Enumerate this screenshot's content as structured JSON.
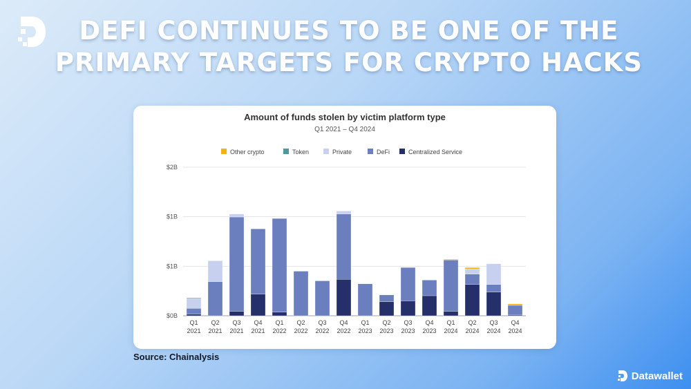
{
  "headline": {
    "line1": "DEFI CONTINUES TO BE ONE OF THE",
    "line2": "PRIMARY TARGETS FOR CRYPTO HACKS"
  },
  "source": "Source: Chainalysis",
  "brand": {
    "name": "Datawallet",
    "icon": "datawallet-logo-icon"
  },
  "colors": {
    "other": "#f2b316",
    "token": "#4d9a9e",
    "private": "#c7d0ee",
    "defi": "#6b7fbf",
    "centralized": "#25306b"
  },
  "chart_data": {
    "type": "bar",
    "stacked": true,
    "title": "Amount of funds stolen by victim platform type",
    "subtitle": "Q1 2021 – Q4 2024",
    "y_ticks": [
      "$0B",
      "$1B",
      "$1B",
      "$2B"
    ],
    "ylim": [
      0,
      2.0
    ],
    "ylabel": "",
    "xlabel": "",
    "grid": true,
    "legend_position": "top",
    "categories": [
      [
        "Q1",
        "2021"
      ],
      [
        "Q2",
        "2021"
      ],
      [
        "Q3",
        "2021"
      ],
      [
        "Q4",
        "2021"
      ],
      [
        "Q1",
        "2022"
      ],
      [
        "Q2",
        "2022"
      ],
      [
        "Q3",
        "2022"
      ],
      [
        "Q4",
        "2022"
      ],
      [
        "Q1",
        "2023"
      ],
      [
        "Q2",
        "2023"
      ],
      [
        "Q3",
        "2023"
      ],
      [
        "Q4",
        "2023"
      ],
      [
        "Q1",
        "2024"
      ],
      [
        "Q2",
        "2024"
      ],
      [
        "Q3",
        "2024"
      ],
      [
        "Q4",
        "2024"
      ]
    ],
    "series": [
      {
        "name": "Centralized Service",
        "key": "centralized",
        "values": [
          0.02,
          0.0,
          0.06,
          0.29,
          0.05,
          0.0,
          0.0,
          0.49,
          0.0,
          0.19,
          0.2,
          0.27,
          0.06,
          0.42,
          0.32,
          0.01
        ]
      },
      {
        "name": "DeFi",
        "key": "defi",
        "values": [
          0.08,
          0.46,
          1.27,
          0.88,
          1.26,
          0.6,
          0.47,
          0.88,
          0.43,
          0.09,
          0.45,
          0.21,
          0.69,
          0.14,
          0.1,
          0.13
        ]
      },
      {
        "name": "Private",
        "key": "private",
        "values": [
          0.13,
          0.28,
          0.04,
          0.0,
          0.0,
          0.0,
          0.0,
          0.04,
          0.0,
          0.0,
          0.0,
          0.0,
          0.0,
          0.07,
          0.28,
          0.0
        ]
      },
      {
        "name": "Token",
        "key": "token",
        "values": [
          0.01,
          0.0,
          0.0,
          0.0,
          0.0,
          0.0,
          0.0,
          0.0,
          0.0,
          0.0,
          0.0,
          0.0,
          0.0,
          0.0,
          0.0,
          0.0
        ]
      },
      {
        "name": "Other crypto",
        "key": "other",
        "values": [
          0.0,
          0.0,
          0.0,
          0.0,
          0.0,
          0.0,
          0.0,
          0.0,
          0.0,
          0.0,
          0.0,
          0.0,
          0.01,
          0.02,
          0.0,
          0.02
        ]
      }
    ],
    "legend": [
      {
        "name": "Other crypto",
        "key": "other"
      },
      {
        "name": "Token",
        "key": "token"
      },
      {
        "name": "Private",
        "key": "private"
      },
      {
        "name": "DeFi",
        "key": "defi"
      },
      {
        "name": "Centralized Service",
        "key": "centralized"
      }
    ]
  }
}
